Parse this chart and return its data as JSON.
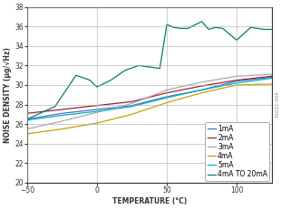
{
  "title": "",
  "xlabel": "TEMPERATURE (°C)",
  "ylabel": "NOISE DENSITY (µg/√Hz)",
  "xlim": [
    -50,
    125
  ],
  "ylim": [
    20,
    38
  ],
  "xticks": [
    -50,
    0,
    50,
    100
  ],
  "yticks": [
    20,
    22,
    24,
    26,
    28,
    30,
    32,
    34,
    36,
    38
  ],
  "bg_color": "#ffffff",
  "series": [
    {
      "label": "1mA",
      "color": "#4472c4",
      "x": [
        -50,
        -25,
        0,
        25,
        50,
        75,
        100,
        125
      ],
      "y": [
        26.5,
        27.1,
        27.5,
        27.9,
        28.8,
        29.5,
        30.4,
        30.8
      ]
    },
    {
      "label": "2mA",
      "color": "#9b2335",
      "x": [
        -50,
        -25,
        0,
        25,
        50,
        75,
        100,
        125
      ],
      "y": [
        27.1,
        27.5,
        27.9,
        28.3,
        29.2,
        29.9,
        30.5,
        30.9
      ]
    },
    {
      "label": "3mA",
      "color": "#aaaaaa",
      "x": [
        -50,
        -25,
        0,
        25,
        50,
        75,
        100,
        125
      ],
      "y": [
        25.5,
        26.3,
        27.2,
        28.1,
        29.5,
        30.3,
        30.9,
        31.1
      ]
    },
    {
      "label": "4mA",
      "color": "#c8a000",
      "x": [
        -50,
        -25,
        0,
        25,
        50,
        75,
        100,
        125
      ],
      "y": [
        25.0,
        25.5,
        26.1,
        27.0,
        28.2,
        29.2,
        30.0,
        30.1
      ]
    },
    {
      "label": "5mA",
      "color": "#00b0c8",
      "x": [
        -50,
        -25,
        0,
        25,
        50,
        75,
        100,
        125
      ],
      "y": [
        26.4,
        26.9,
        27.3,
        27.8,
        28.7,
        29.5,
        30.2,
        30.7
      ]
    },
    {
      "label": "4mA TO 20mA",
      "color": "#008060",
      "x": [
        -50,
        -30,
        -15,
        -5,
        0,
        10,
        20,
        30,
        40,
        45,
        50,
        55,
        60,
        65,
        75,
        80,
        85,
        90,
        100,
        110,
        120,
        125
      ],
      "y": [
        26.5,
        27.8,
        31.0,
        30.5,
        29.8,
        30.5,
        31.5,
        32.0,
        31.8,
        31.7,
        36.2,
        35.9,
        35.8,
        35.8,
        36.5,
        35.7,
        35.9,
        35.8,
        34.6,
        35.9,
        35.7,
        35.7
      ]
    }
  ],
  "legend_fontsize": 5.5,
  "axis_label_fontsize": 5.5,
  "tick_fontsize": 5.5,
  "line_width": 0.9,
  "watermark": "21031-006"
}
